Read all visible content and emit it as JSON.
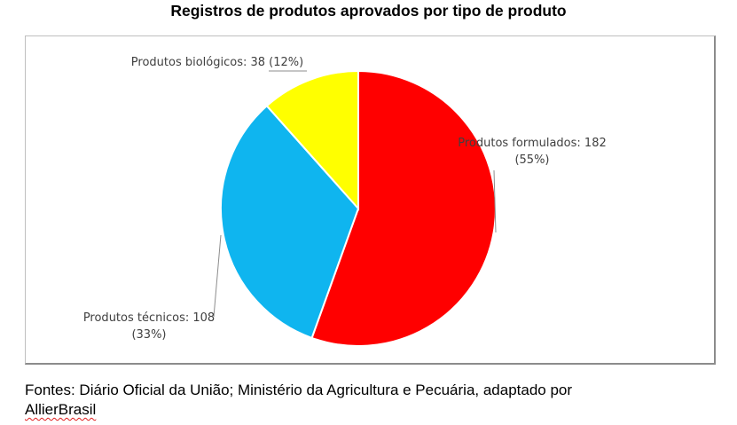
{
  "title": "Registros de produtos aprovados por tipo de produto",
  "source": {
    "text": "Fontes: Diário Oficial da União; Ministério da Agricultura e Pecuária, adaptado por",
    "name": "AllierBrasil"
  },
  "chart_data": {
    "type": "pie",
    "title": "Registros de produtos aprovados por tipo de produto",
    "start_angle_deg": 0,
    "slices": [
      {
        "name": "Produtos formulados",
        "value": 182,
        "percent": "55%",
        "color": "#ff0000",
        "label_line1": "Produtos formulados: 182",
        "label_line2": "(55%)"
      },
      {
        "name": "Produtos técnicos",
        "value": 108,
        "percent": "33%",
        "color": "#0fb5ef",
        "label_line1": "Produtos técnicos: 108",
        "label_line2": "(33%)"
      },
      {
        "name": "Produtos biológicos",
        "value": 38,
        "percent": "12%",
        "color": "#ffff00",
        "label_line1": "Produtos biológicos: 38 (12%)",
        "label_line2": ""
      }
    ]
  }
}
